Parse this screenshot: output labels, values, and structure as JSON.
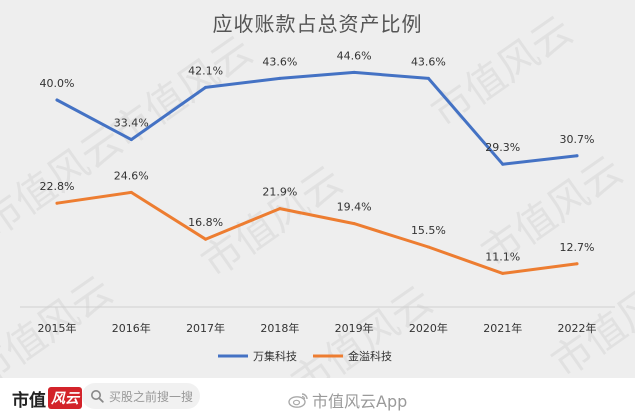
{
  "chart_data": {
    "type": "line",
    "title": "应收账款占总资产比例",
    "categories": [
      "2015年",
      "2016年",
      "2017年",
      "2018年",
      "2019年",
      "2020年",
      "2021年",
      "2022年"
    ],
    "series": [
      {
        "name": "万集科技",
        "color": "#4472c4",
        "values": [
          40.0,
          33.4,
          42.1,
          43.6,
          44.6,
          43.6,
          29.3,
          30.7
        ],
        "labels": [
          "40.0%",
          "33.4%",
          "42.1%",
          "43.6%",
          "44.6%",
          "43.6%",
          "29.3%",
          "30.7%"
        ]
      },
      {
        "name": "金溢科技",
        "color": "#ed7d31",
        "values": [
          22.8,
          24.6,
          16.8,
          21.9,
          19.4,
          15.5,
          11.1,
          12.7
        ],
        "labels": [
          "22.8%",
          "24.6%",
          "16.8%",
          "21.9%",
          "19.4%",
          "15.5%",
          "11.1%",
          "12.7%"
        ]
      }
    ],
    "xlabel": "",
    "ylabel": "",
    "ylim": [
      0,
      50
    ],
    "grid": false,
    "legend": "bottom"
  },
  "watermark": "市值风云",
  "footer": {
    "brand": "市值",
    "brand_stamp": "风云",
    "search_placeholder": "买股之前搜一搜",
    "app_credit": "市值风云App"
  }
}
